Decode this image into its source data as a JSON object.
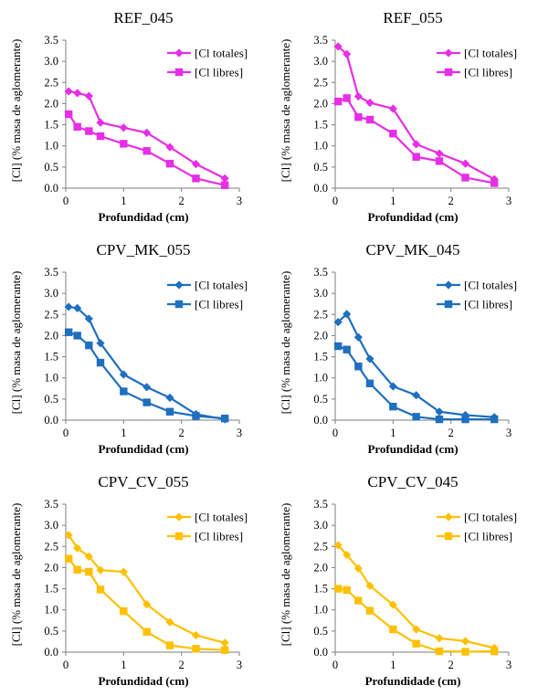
{
  "chart_data": [
    {
      "type": "line",
      "title": "REF_045",
      "xlabel": "Profundidad (cm)",
      "ylabel": "[Cl] (% masa de aglomerante)",
      "xlim": [
        0,
        3
      ],
      "ylim": [
        0,
        3.5
      ],
      "xticks": [
        "0",
        "1",
        "2",
        "3"
      ],
      "yticks": [
        "0.0",
        "0.5",
        "1.0",
        "1.5",
        "2.0",
        "2.5",
        "3.0",
        "3.5"
      ],
      "grid": false,
      "legend": "top-right",
      "color": "#e62ee6",
      "series": [
        {
          "name": "[Cl totales]",
          "marker": "diamond",
          "x": [
            0.05,
            0.2,
            0.4,
            0.6,
            1.0,
            1.4,
            1.8,
            2.25,
            2.75
          ],
          "y": [
            2.29,
            2.25,
            2.18,
            1.55,
            1.43,
            1.31,
            0.97,
            0.57,
            0.23
          ]
        },
        {
          "name": "[Cl libres]",
          "marker": "square",
          "x": [
            0.05,
            0.2,
            0.4,
            0.6,
            1.0,
            1.4,
            1.8,
            2.25,
            2.75
          ],
          "y": [
            1.75,
            1.45,
            1.35,
            1.23,
            1.05,
            0.88,
            0.58,
            0.23,
            0.07
          ]
        }
      ]
    },
    {
      "type": "line",
      "title": "REF_055",
      "xlabel": "Profundidad (cm)",
      "ylabel": "[Cl] (% masa de aglomerante)",
      "xlim": [
        0,
        3
      ],
      "ylim": [
        0,
        3.5
      ],
      "xticks": [
        "0",
        "1",
        "2",
        "3"
      ],
      "yticks": [
        "0.0",
        "0.5",
        "1.0",
        "1.5",
        "2.0",
        "2.5",
        "3.0",
        "3.5"
      ],
      "grid": false,
      "legend": "top-right",
      "color": "#e62ee6",
      "series": [
        {
          "name": "[Cl totales]",
          "marker": "diamond",
          "x": [
            0.05,
            0.2,
            0.4,
            0.6,
            1.0,
            1.4,
            1.8,
            2.25,
            2.75
          ],
          "y": [
            3.35,
            3.17,
            2.17,
            2.02,
            1.88,
            1.04,
            0.82,
            0.58,
            0.21
          ]
        },
        {
          "name": "[Cl libres]",
          "marker": "square",
          "x": [
            0.05,
            0.2,
            0.4,
            0.6,
            1.0,
            1.4,
            1.8,
            2.25,
            2.75
          ],
          "y": [
            2.05,
            2.13,
            1.68,
            1.62,
            1.29,
            0.74,
            0.64,
            0.25,
            0.12
          ]
        }
      ]
    },
    {
      "type": "line",
      "title": "CPV_MK_055",
      "xlabel": "Profundidad (cm)",
      "ylabel": "[Cl] (% masa de aglomerante)",
      "xlim": [
        0,
        3
      ],
      "ylim": [
        0,
        3.5
      ],
      "xticks": [
        "0",
        "1",
        "2",
        "3"
      ],
      "yticks": [
        "0.0",
        "0.5",
        "1.0",
        "1.5",
        "2.0",
        "2.5",
        "3.0",
        "3.5"
      ],
      "grid": false,
      "legend": "top-right",
      "color": "#1f6fbf",
      "series": [
        {
          "name": "[Cl totales]",
          "marker": "diamond",
          "x": [
            0.05,
            0.2,
            0.4,
            0.6,
            1.0,
            1.4,
            1.8,
            2.25,
            2.75
          ],
          "y": [
            2.68,
            2.65,
            2.4,
            1.82,
            1.08,
            0.78,
            0.53,
            0.14,
            0.02
          ]
        },
        {
          "name": "[Cl libres]",
          "marker": "square",
          "x": [
            0.05,
            0.2,
            0.4,
            0.6,
            1.0,
            1.4,
            1.8,
            2.25,
            2.75
          ],
          "y": [
            2.08,
            2.0,
            1.77,
            1.36,
            0.68,
            0.42,
            0.2,
            0.1,
            0.04
          ]
        }
      ]
    },
    {
      "type": "line",
      "title": "CPV_MK_045",
      "xlabel": "Profundidad (cm)",
      "ylabel": "[Cl] (% masa de aglomerante)",
      "xlim": [
        0,
        3
      ],
      "ylim": [
        0,
        3.5
      ],
      "xticks": [
        "0",
        "1",
        "2",
        "3"
      ],
      "yticks": [
        "0.0",
        "0.5",
        "1.0",
        "1.5",
        "2.0",
        "2.5",
        "3.0",
        "3.5"
      ],
      "grid": false,
      "legend": "top-right",
      "color": "#1f6fbf",
      "series": [
        {
          "name": "[Cl totales]",
          "marker": "diamond",
          "x": [
            0.05,
            0.2,
            0.4,
            0.6,
            1.0,
            1.4,
            1.8,
            2.25,
            2.75
          ],
          "y": [
            2.32,
            2.51,
            1.96,
            1.45,
            0.8,
            0.59,
            0.2,
            0.12,
            0.07
          ]
        },
        {
          "name": "[Cl libres]",
          "marker": "square",
          "x": [
            0.05,
            0.2,
            0.4,
            0.6,
            1.0,
            1.4,
            1.8,
            2.25,
            2.75
          ],
          "y": [
            1.75,
            1.67,
            1.27,
            0.87,
            0.32,
            0.08,
            0.02,
            0.02,
            0.02
          ]
        }
      ]
    },
    {
      "type": "line",
      "title": "CPV_CV_055",
      "xlabel": "Profundidad (cm)",
      "ylabel": "[Cl] (% masa de aglomerante)",
      "xlim": [
        0,
        3
      ],
      "ylim": [
        0,
        3.5
      ],
      "xticks": [
        "0",
        "1",
        "2",
        "3"
      ],
      "yticks": [
        "0.0",
        "0.5",
        "1.0",
        "1.5",
        "2.0",
        "2.5",
        "3.0",
        "3.5"
      ],
      "grid": false,
      "legend": "top-right",
      "color": "#ffc000",
      "series": [
        {
          "name": "[Cl totales]",
          "marker": "diamond",
          "x": [
            0.05,
            0.2,
            0.4,
            0.6,
            1.0,
            1.4,
            1.8,
            2.25,
            2.75
          ],
          "y": [
            2.77,
            2.46,
            2.26,
            1.94,
            1.9,
            1.13,
            0.71,
            0.4,
            0.22
          ]
        },
        {
          "name": "[Cl libres]",
          "marker": "square",
          "x": [
            0.05,
            0.2,
            0.4,
            0.6,
            1.0,
            1.4,
            1.8,
            2.25,
            2.75
          ],
          "y": [
            2.21,
            1.95,
            1.9,
            1.48,
            0.97,
            0.48,
            0.16,
            0.08,
            0.05
          ]
        }
      ]
    },
    {
      "type": "line",
      "title": "CPV_CV_045",
      "xlabel": "Profundidade (cm)",
      "ylabel": "[Cl] (% masa de aglomerante)",
      "xlim": [
        0,
        3
      ],
      "ylim": [
        0,
        3.5
      ],
      "xticks": [
        "0",
        "1",
        "2",
        "3"
      ],
      "yticks": [
        "0.0",
        "0.5",
        "1.0",
        "1.5",
        "2.0",
        "2.5",
        "3.0",
        "3.5"
      ],
      "grid": false,
      "legend": "top-right",
      "color": "#ffc000",
      "series": [
        {
          "name": "[Cl totales]",
          "marker": "diamond",
          "x": [
            0.05,
            0.2,
            0.4,
            0.6,
            1.0,
            1.4,
            1.8,
            2.25,
            2.75
          ],
          "y": [
            2.53,
            2.3,
            1.98,
            1.57,
            1.12,
            0.54,
            0.33,
            0.26,
            0.1
          ]
        },
        {
          "name": "[Cl libres]",
          "marker": "square",
          "x": [
            0.05,
            0.2,
            0.4,
            0.6,
            1.0,
            1.4,
            1.8,
            2.25,
            2.75
          ],
          "y": [
            1.5,
            1.47,
            1.22,
            0.98,
            0.54,
            0.2,
            0.02,
            0.01,
            0.02
          ]
        }
      ]
    }
  ]
}
